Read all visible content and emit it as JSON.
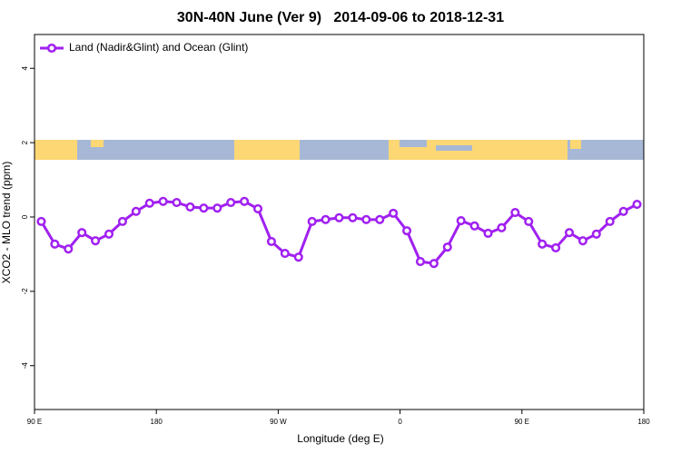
{
  "chart_data": {
    "type": "line",
    "title": "30N-40N June (Ver 9)   2014-09-06 to 2018-12-31",
    "xlabel": "Longitude (deg E)",
    "ylabel": "XCO2 - MLO trend (ppm)",
    "x": [
      95,
      105,
      115,
      125,
      135,
      145,
      155,
      165,
      175,
      185,
      195,
      205,
      215,
      225,
      235,
      245,
      255,
      265,
      275,
      285,
      295,
      305,
      315,
      325,
      335,
      345,
      355,
      365,
      375,
      385,
      395,
      405,
      415,
      425,
      435,
      445,
      455,
      465,
      475,
      485,
      495,
      505,
      515,
      525,
      535
    ],
    "series": [
      {
        "name": "Land (Nadir&Glint) and Ocean (Glint)",
        "color": "#a020f0",
        "values": [
          -0.12,
          -0.73,
          -0.86,
          -0.42,
          -0.64,
          -0.46,
          -0.12,
          0.15,
          0.37,
          0.42,
          0.39,
          0.27,
          0.24,
          0.24,
          0.39,
          0.42,
          0.22,
          -0.66,
          -0.98,
          -1.08,
          -0.12,
          -0.07,
          -0.02,
          -0.02,
          -0.07,
          -0.07,
          0.1,
          -0.37,
          -1.2,
          -1.25,
          -0.81,
          -0.1,
          -0.24,
          -0.44,
          -0.29,
          0.12,
          -0.12,
          -0.73,
          -0.83,
          -0.42,
          -0.64,
          -0.46,
          -0.12,
          0.15,
          0.34
        ]
      }
    ],
    "xlim": [
      90,
      540
    ],
    "xticks": [
      {
        "value": 90,
        "label": "90 E"
      },
      180,
      {
        "value": 270,
        "label": "90 W"
      },
      {
        "value": 360,
        "label": "0"
      },
      {
        "value": 450,
        "label": "90 E"
      },
      {
        "value": 540,
        "label": "180"
      }
    ],
    "ylim": [
      -5.18,
      4.91
    ],
    "yticks": [
      -4,
      -2,
      0,
      2,
      4
    ],
    "grid": false,
    "legend": "top-left"
  }
}
